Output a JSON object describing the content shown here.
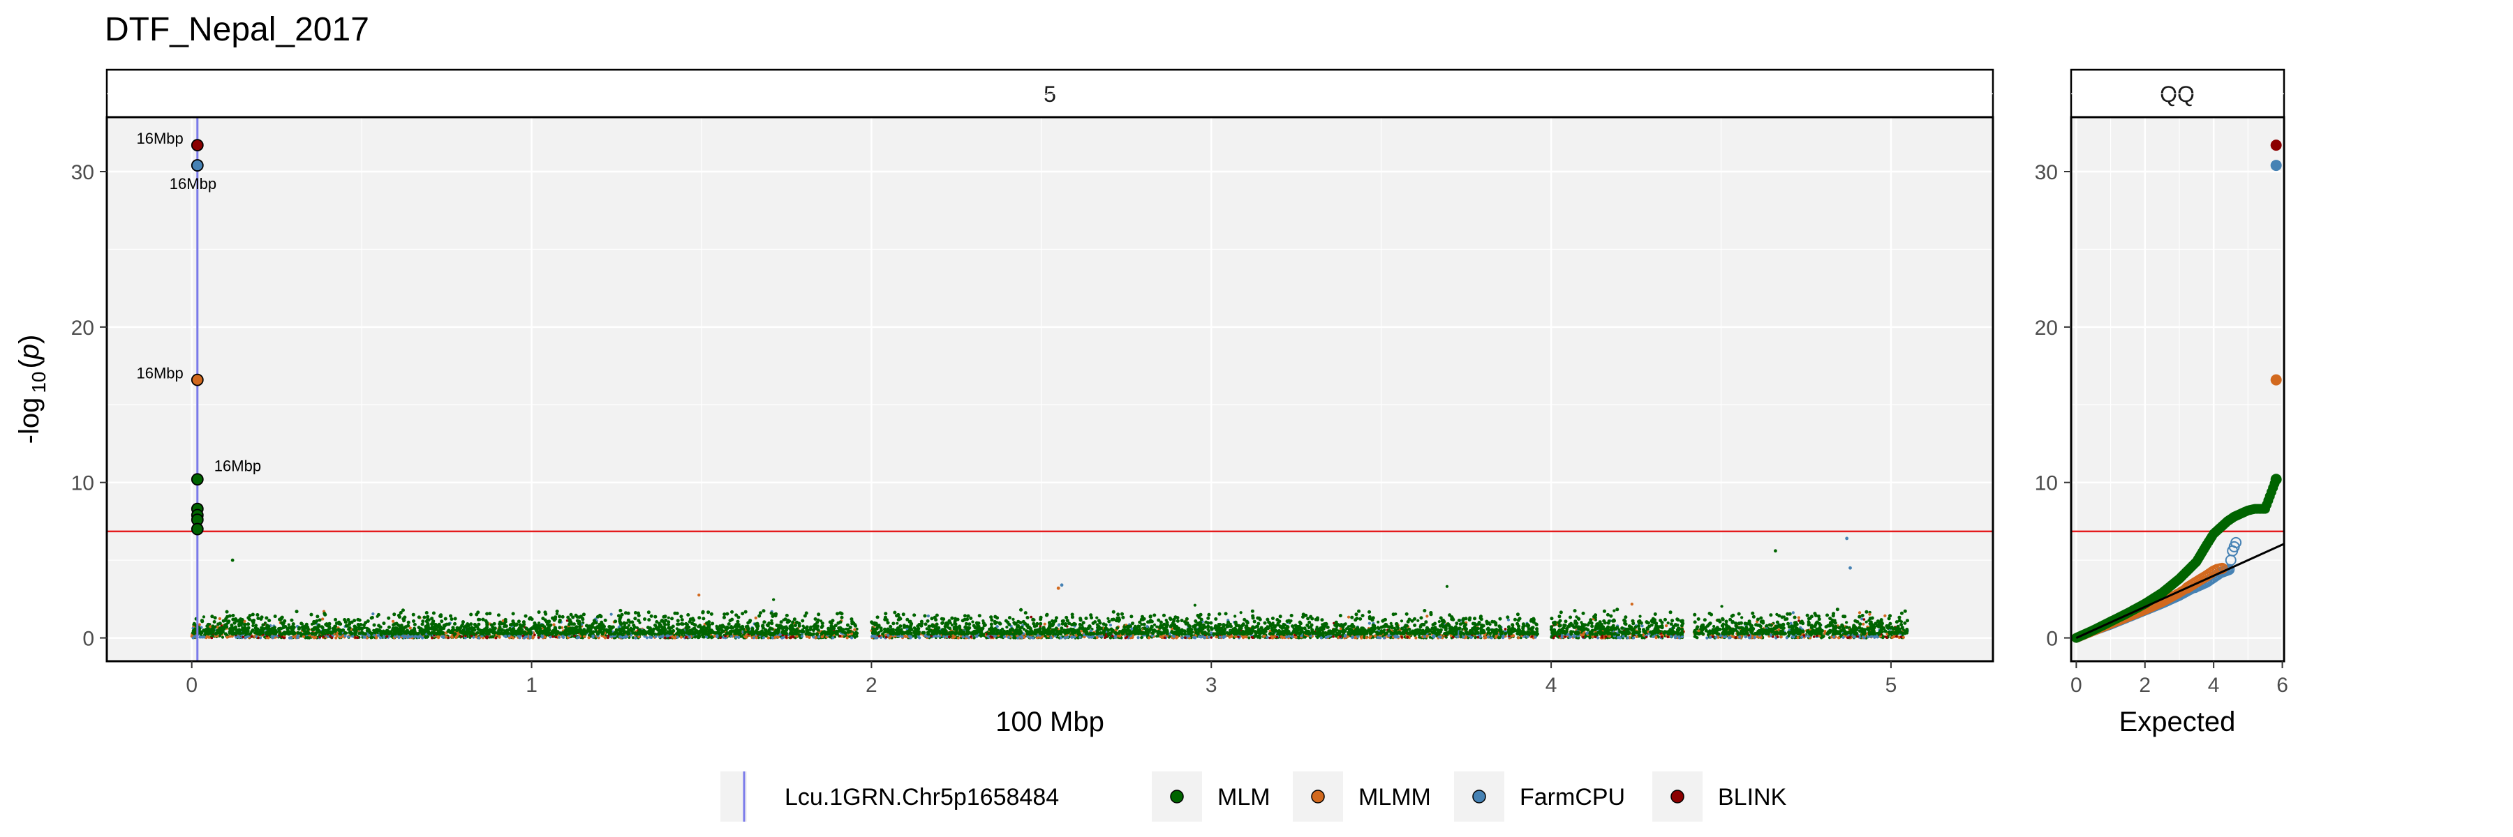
{
  "title": "DTF_Nepal_2017",
  "colors": {
    "panel_bg": "#f2f2f2",
    "grid": "#ffffff",
    "threshold": "#e41a1c",
    "marker_line": "#7b7bea",
    "MLM": "#006400",
    "MLMM": "#d2691e",
    "FarmCPU": "#4682b4",
    "BLINK": "#8b0000",
    "qq_line": "#000000"
  },
  "chart_data": [
    {
      "type": "scatter",
      "subtype": "manhattan",
      "strip_label": "5",
      "xlabel": "100 Mbp",
      "ylabel_base": "-log",
      "ylabel_sub": "10",
      "ylabel_var": "p",
      "xlim": [
        -0.25,
        5.3
      ],
      "ylim": [
        -1.5,
        33.5
      ],
      "xticks": [
        0,
        1,
        2,
        3,
        4,
        5
      ],
      "yticks": [
        0,
        10,
        20,
        30
      ],
      "threshold": 6.85,
      "marker_x": 0.0166,
      "noise_x_range": [
        0.0,
        5.05
      ],
      "gaps": [
        [
          1.96,
          2.0
        ],
        [
          3.96,
          4.0
        ],
        [
          4.39,
          4.42
        ]
      ],
      "top_hits": [
        {
          "series": "BLINK",
          "x": 0.0166,
          "y": 31.7,
          "label": "16Mbp",
          "label_side": "left"
        },
        {
          "series": "FarmCPU",
          "x": 0.0166,
          "y": 30.4,
          "label": "16Mbp",
          "label_side": "below"
        },
        {
          "series": "MLMM",
          "x": 0.0166,
          "y": 16.6,
          "label": "16Mbp",
          "label_side": "left"
        },
        {
          "series": "MLM",
          "x": 0.0166,
          "y": 10.2,
          "label": "16Mbp",
          "label_side": "right"
        },
        {
          "series": "MLM",
          "x": 0.0166,
          "y": 8.3,
          "label": "",
          "label_side": ""
        },
        {
          "series": "MLM",
          "x": 0.0166,
          "y": 7.9,
          "label": "",
          "label_side": ""
        },
        {
          "series": "MLM",
          "x": 0.0166,
          "y": 7.6,
          "label": "",
          "label_side": ""
        },
        {
          "series": "MLM",
          "x": 0.0166,
          "y": 7.0,
          "label": "",
          "label_side": ""
        }
      ],
      "outliers": [
        {
          "series": "FarmCPU",
          "x": 4.87,
          "y": 6.4
        },
        {
          "series": "MLM",
          "x": 4.66,
          "y": 5.6
        },
        {
          "series": "MLM",
          "x": 0.12,
          "y": 5.0
        },
        {
          "series": "FarmCPU",
          "x": 4.88,
          "y": 4.5
        },
        {
          "series": "MLMM",
          "x": 2.55,
          "y": 3.2
        },
        {
          "series": "FarmCPU",
          "x": 2.56,
          "y": 3.4
        }
      ]
    },
    {
      "type": "scatter",
      "subtype": "qq",
      "strip_label": "QQ",
      "xlabel": "Expected",
      "xlim": [
        -0.15,
        6.05
      ],
      "ylim": [
        -1.5,
        33.5
      ],
      "xticks": [
        0,
        2,
        4,
        6
      ],
      "yticks": [
        0,
        10,
        20,
        30
      ],
      "threshold": 6.85,
      "series": [
        {
          "name": "MLM",
          "points": [
            [
              0,
              0
            ],
            [
              0.5,
              0.5
            ],
            [
              1,
              1.05
            ],
            [
              1.5,
              1.6
            ],
            [
              2,
              2.2
            ],
            [
              2.5,
              2.9
            ],
            [
              3,
              3.8
            ],
            [
              3.5,
              4.9
            ],
            [
              3.8,
              6.0
            ],
            [
              4,
              6.7
            ],
            [
              4.2,
              7.1
            ],
            [
              4.4,
              7.5
            ],
            [
              4.6,
              7.8
            ],
            [
              4.8,
              8.0
            ],
            [
              5.0,
              8.2
            ],
            [
              5.2,
              8.3
            ],
            [
              5.5,
              8.3
            ],
            [
              5.82,
              10.2
            ]
          ]
        },
        {
          "name": "MLMM",
          "points": [
            [
              0,
              0
            ],
            [
              0.5,
              0.45
            ],
            [
              1,
              0.9
            ],
            [
              1.5,
              1.35
            ],
            [
              2,
              1.8
            ],
            [
              2.5,
              2.3
            ],
            [
              3,
              2.9
            ],
            [
              3.5,
              3.6
            ],
            [
              3.8,
              4.0
            ],
            [
              4.0,
              4.3
            ],
            [
              4.1,
              4.4
            ],
            [
              4.3,
              4.5
            ],
            [
              5.82,
              16.6
            ]
          ]
        },
        {
          "name": "FarmCPU",
          "points": [
            [
              0,
              0
            ],
            [
              0.5,
              0.45
            ],
            [
              1,
              0.85
            ],
            [
              1.5,
              1.3
            ],
            [
              2,
              1.75
            ],
            [
              2.5,
              2.2
            ],
            [
              3,
              2.7
            ],
            [
              3.5,
              3.3
            ],
            [
              3.8,
              3.6
            ],
            [
              4.0,
              3.9
            ],
            [
              4.2,
              4.2
            ],
            [
              4.45,
              4.4
            ],
            [
              4.55,
              5.6
            ],
            [
              4.7,
              6.4
            ],
            [
              5.82,
              30.4
            ]
          ]
        },
        {
          "name": "BLINK",
          "points": [
            [
              5.82,
              31.7
            ]
          ]
        }
      ],
      "diag_line": [
        [
          0,
          0
        ],
        [
          6.05,
          6.05
        ]
      ]
    }
  ],
  "legend": {
    "marker_label": "Lcu.1GRN.Chr5p1658484",
    "items": [
      "MLM",
      "MLMM",
      "FarmCPU",
      "BLINK"
    ]
  }
}
